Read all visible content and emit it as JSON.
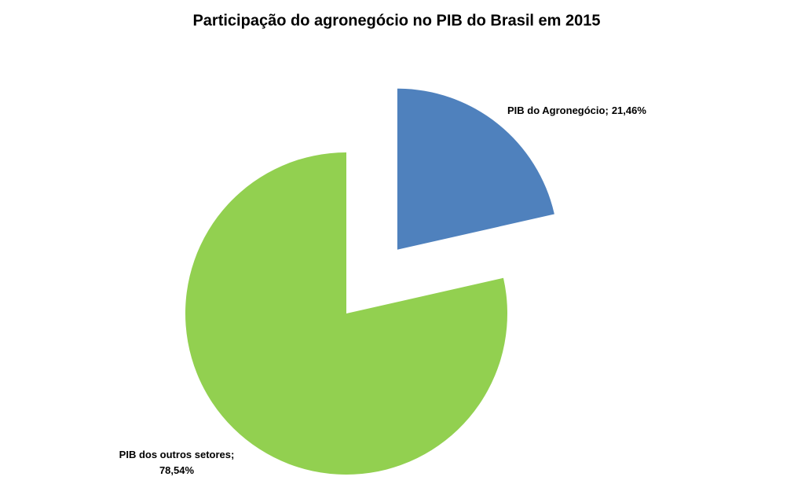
{
  "chart_data": {
    "type": "pie",
    "title": "Participação do agronegócio no PIB do Brasil em 2015",
    "categories": [
      "PIB do Agronegócio",
      "PIB dos outros setores"
    ],
    "values": [
      21.46,
      78.54
    ],
    "value_labels": [
      "21,46%",
      "78,54%"
    ],
    "label_separator": ";",
    "colors": [
      "#4f81bd",
      "#92d050"
    ]
  }
}
